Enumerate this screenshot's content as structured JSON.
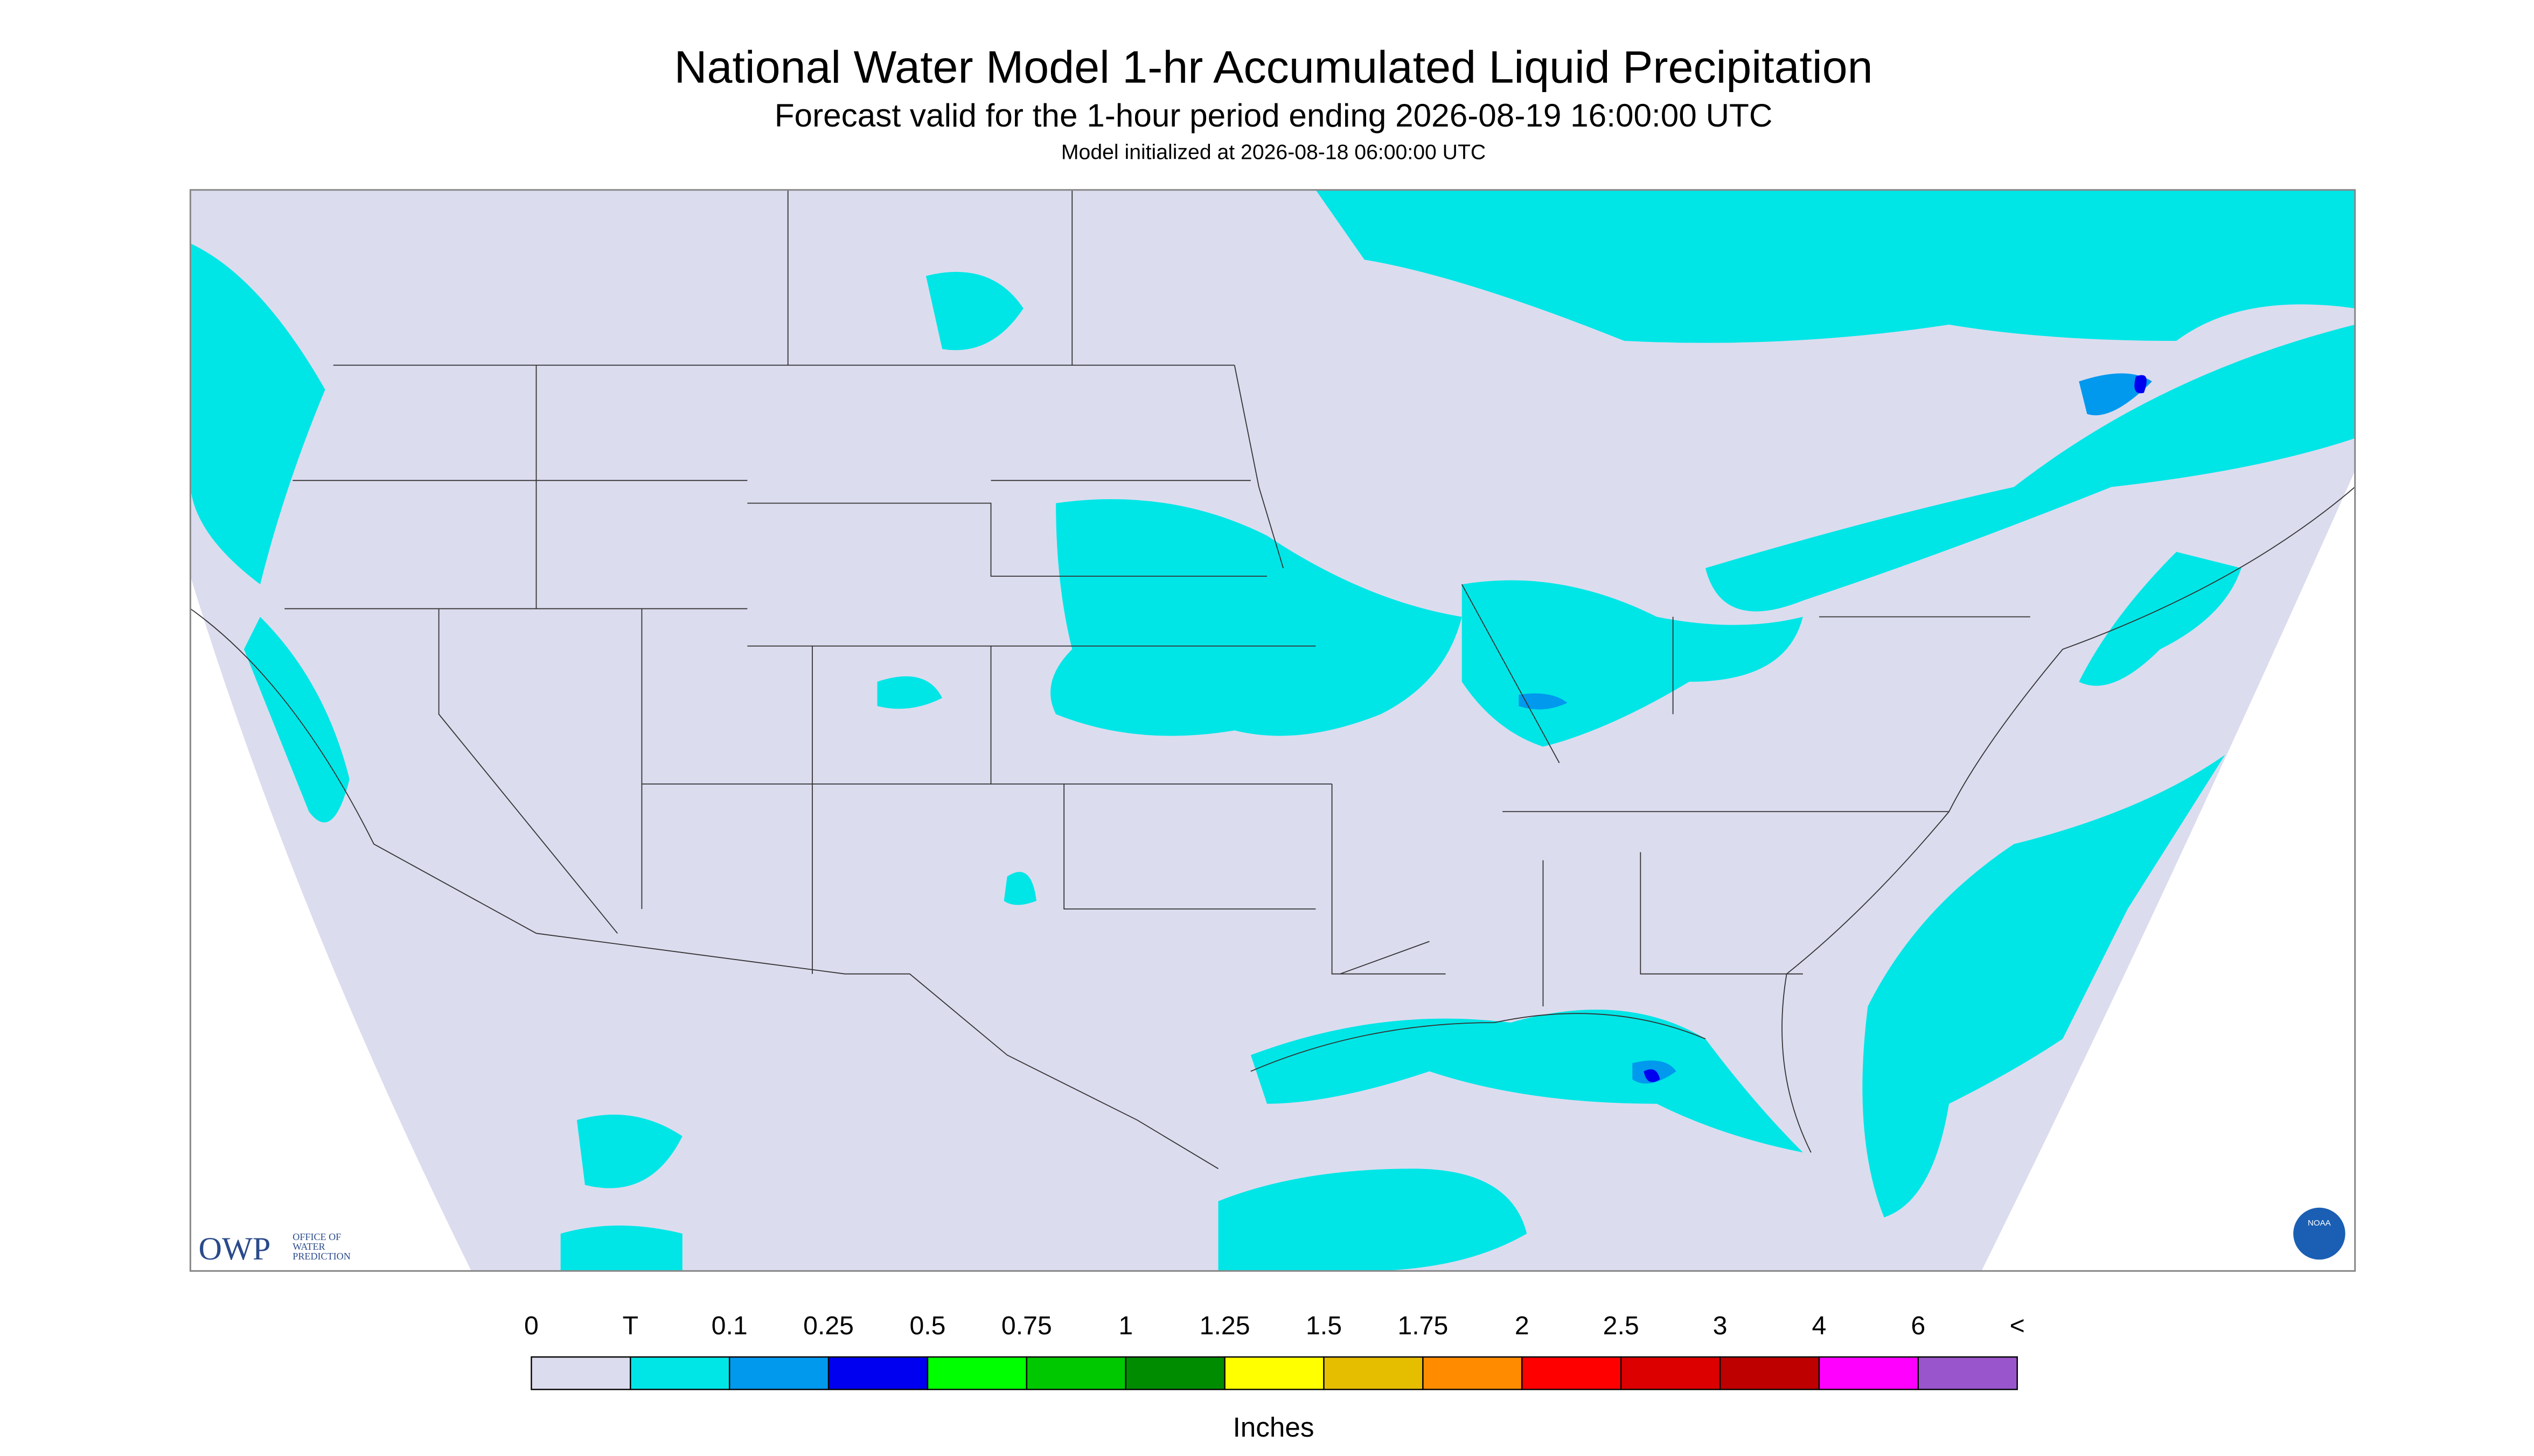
{
  "header": {
    "title": "National Water Model 1-hr Accumulated Liquid Precipitation",
    "subtitle": "Forecast valid for the 1-hour period ending 2026-08-19 16:00:00 UTC",
    "init": "Model initialized at 2026-08-18 06:00:00 UTC"
  },
  "logo": {
    "owp": "OWP",
    "office": [
      "OFFICE OF",
      "WATER",
      "PREDICTION"
    ],
    "noaa": "NOAA"
  },
  "colorbar": {
    "labels": [
      "0",
      "T",
      "0.1",
      "0.25",
      "0.5",
      "0.75",
      "1",
      "1.25",
      "1.5",
      "1.75",
      "2",
      "2.5",
      "3",
      "4",
      "6",
      "<"
    ],
    "colors": [
      "#dcdcef",
      "#00e6e6",
      "#0099ee",
      "#0000f0",
      "#00ff00",
      "#00c800",
      "#008c00",
      "#ffff00",
      "#e6be00",
      "#ff8c00",
      "#ff0000",
      "#dc0000",
      "#be0000",
      "#ff00ff",
      "#9955cc"
    ],
    "unit": "Inches"
  }
}
